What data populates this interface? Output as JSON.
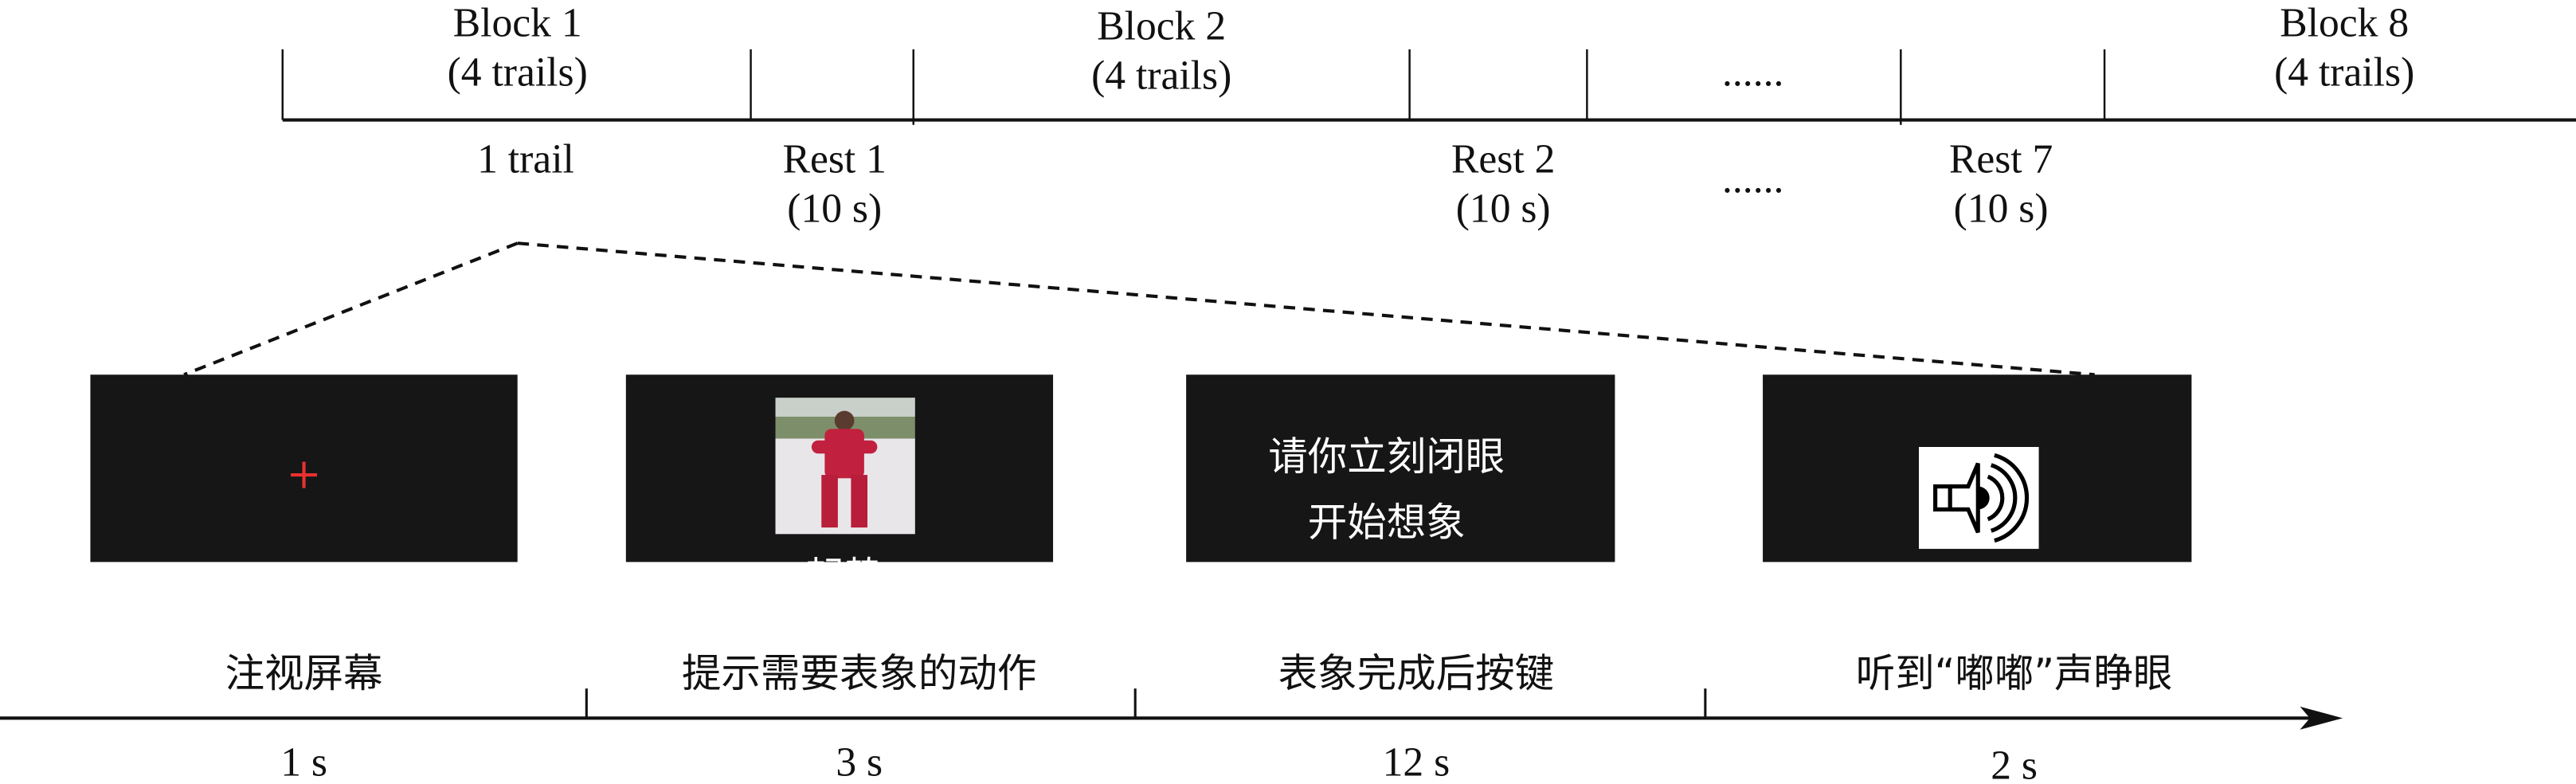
{
  "top_timeline": {
    "blocks": [
      {
        "name": "Block 1",
        "trials": "(4 trails)"
      },
      {
        "name": "Block 2",
        "trials": "(4 trails)"
      },
      {
        "name": "Block 8",
        "trials": "(4 trails)"
      }
    ],
    "ellipsis_top": "......",
    "ellipsis_bottom": "......",
    "trial_label": "1 trail",
    "rests": [
      {
        "name": "Rest 1",
        "duration": "(10 s)"
      },
      {
        "name": "Rest 2",
        "duration": "(10 s)"
      },
      {
        "name": "Rest 7",
        "duration": "(10 s)"
      }
    ]
  },
  "screens": {
    "fixation_color": "#e8312f",
    "cue_caption": "起势",
    "instruction_lines": [
      "请你立刻闭眼",
      "开始想象"
    ],
    "sound_icon": "speaker-icon"
  },
  "phases": [
    {
      "label": "注视屏幕",
      "duration": "1 s"
    },
    {
      "label": "提示需要表象的动作",
      "duration": "3 s"
    },
    {
      "label": "表象完成后按键",
      "duration": "12 s"
    },
    {
      "label": "听到“嘟嘟”声睁眼",
      "duration": "2 s"
    }
  ]
}
